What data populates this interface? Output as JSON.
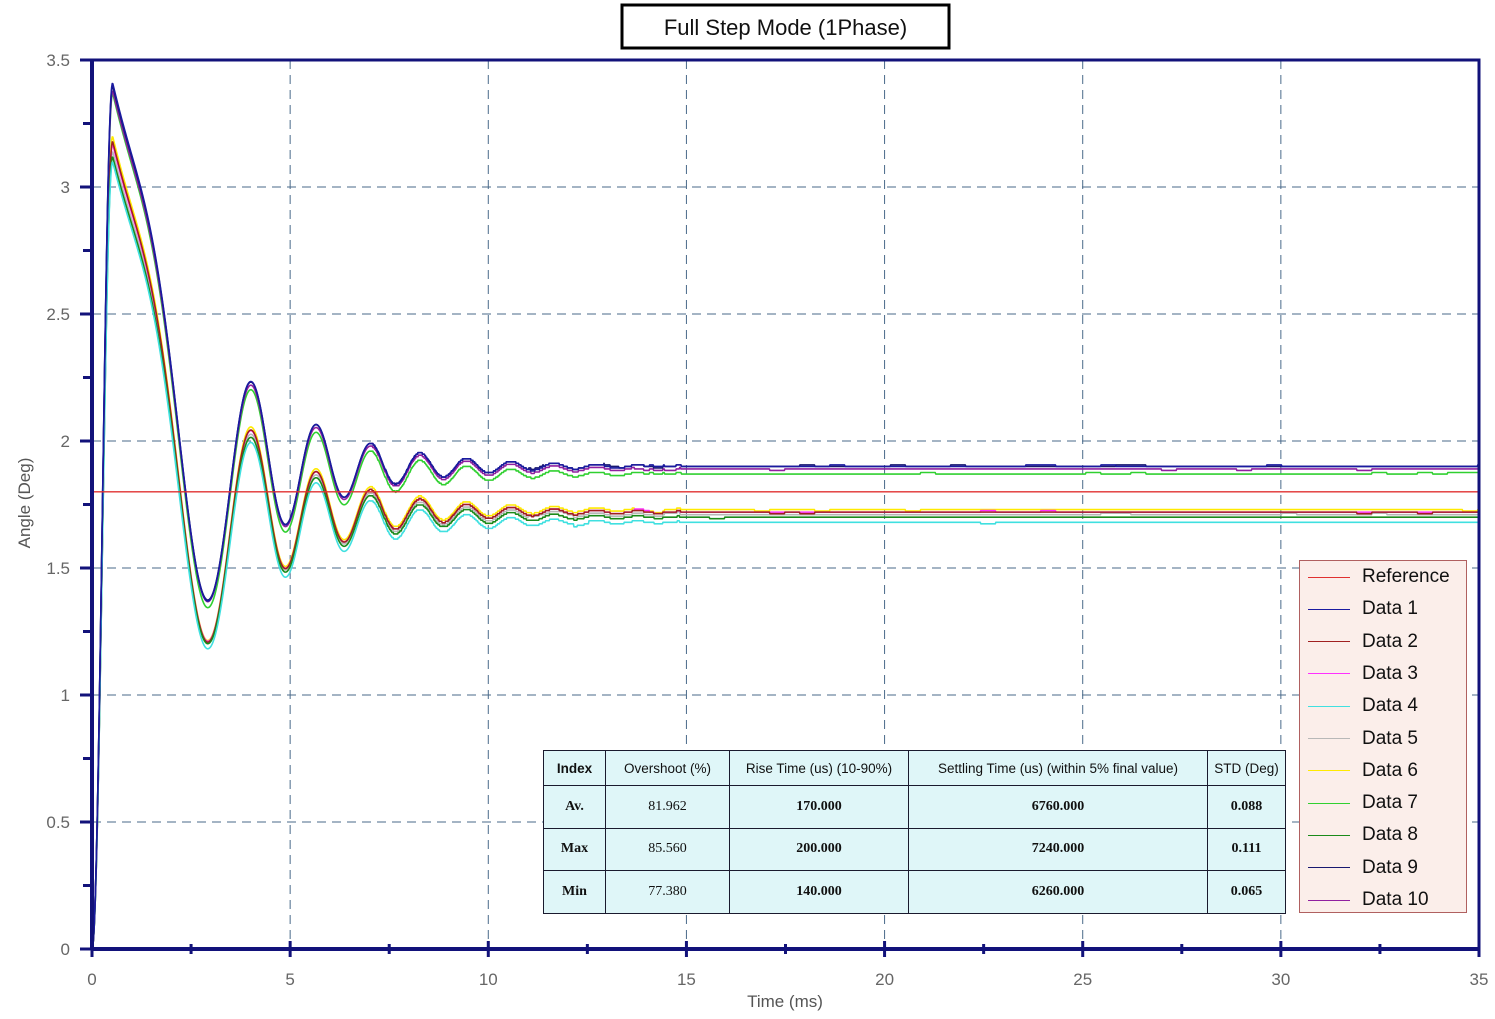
{
  "chart_data": {
    "type": "line",
    "title": "Full Step Mode (1Phase)",
    "xlabel": "Time (ms)",
    "ylabel": "Angle (Deg)",
    "xlim": [
      0,
      35
    ],
    "ylim": [
      0,
      3.5
    ],
    "x_ticks": [
      "0",
      "5",
      "10",
      "15",
      "20",
      "25",
      "30",
      "35"
    ],
    "y_ticks": [
      "0",
      "0.5",
      "1",
      "1.5",
      "2",
      "2.5",
      "3",
      "3.5"
    ],
    "grid": true,
    "legend_position": "bottom-right",
    "reference": {
      "name": "Reference",
      "value": 1.8,
      "color": "#e03030"
    },
    "series": [
      {
        "name": "Data 1",
        "color": "#1a1aa0",
        "final": 1.9,
        "peak": 3.41,
        "group": "high"
      },
      {
        "name": "Data 2",
        "color": "#a02020",
        "final": 1.72,
        "peak": 3.18,
        "group": "low"
      },
      {
        "name": "Data 3",
        "color": "#ff30ff",
        "final": 1.72,
        "peak": 3.17,
        "group": "low"
      },
      {
        "name": "Data 4",
        "color": "#40e0e0",
        "final": 1.68,
        "peak": 3.1,
        "group": "low"
      },
      {
        "name": "Data 5",
        "color": "#b8b8b8",
        "final": 1.71,
        "peak": 3.14,
        "group": "low"
      },
      {
        "name": "Data 6",
        "color": "#ffea00",
        "final": 1.73,
        "peak": 3.2,
        "group": "low"
      },
      {
        "name": "Data 7",
        "color": "#30d030",
        "final": 1.87,
        "peak": 3.37,
        "group": "high"
      },
      {
        "name": "Data 8",
        "color": "#1a8a1a",
        "final": 1.7,
        "peak": 3.12,
        "group": "low"
      },
      {
        "name": "Data 9",
        "color": "#181870",
        "final": 1.9,
        "peak": 3.4,
        "group": "high"
      },
      {
        "name": "Data 10",
        "color": "#9020a0",
        "final": 1.89,
        "peak": 3.38,
        "group": "high"
      }
    ]
  },
  "stats_table": {
    "headers": [
      "Index",
      "Overshoot (%)",
      "Rise Time (us) (10-90%)",
      "Settling Time (us) (within 5% final value)",
      "STD (Deg)"
    ],
    "rows": [
      [
        "Av.",
        "81.962",
        "170.000",
        "6760.000",
        "0.088"
      ],
      [
        "Max",
        "85.560",
        "200.000",
        "7240.000",
        "0.111"
      ],
      [
        "Min",
        "77.380",
        "140.000",
        "6260.000",
        "0.065"
      ]
    ]
  },
  "legend": {
    "items": [
      {
        "label": "Reference",
        "color": "#e03030"
      },
      {
        "label": "Data 1",
        "color": "#1a1aa0"
      },
      {
        "label": "Data 2",
        "color": "#a02020"
      },
      {
        "label": "Data 3",
        "color": "#ff30ff"
      },
      {
        "label": "Data 4",
        "color": "#40e0e0"
      },
      {
        "label": "Data 5",
        "color": "#b8b8b8"
      },
      {
        "label": "Data 6",
        "color": "#ffea00"
      },
      {
        "label": "Data 7",
        "color": "#30d030"
      },
      {
        "label": "Data 8",
        "color": "#1a8a1a"
      },
      {
        "label": "Data 9",
        "color": "#181870"
      },
      {
        "label": "Data 10",
        "color": "#9020a0"
      }
    ]
  }
}
